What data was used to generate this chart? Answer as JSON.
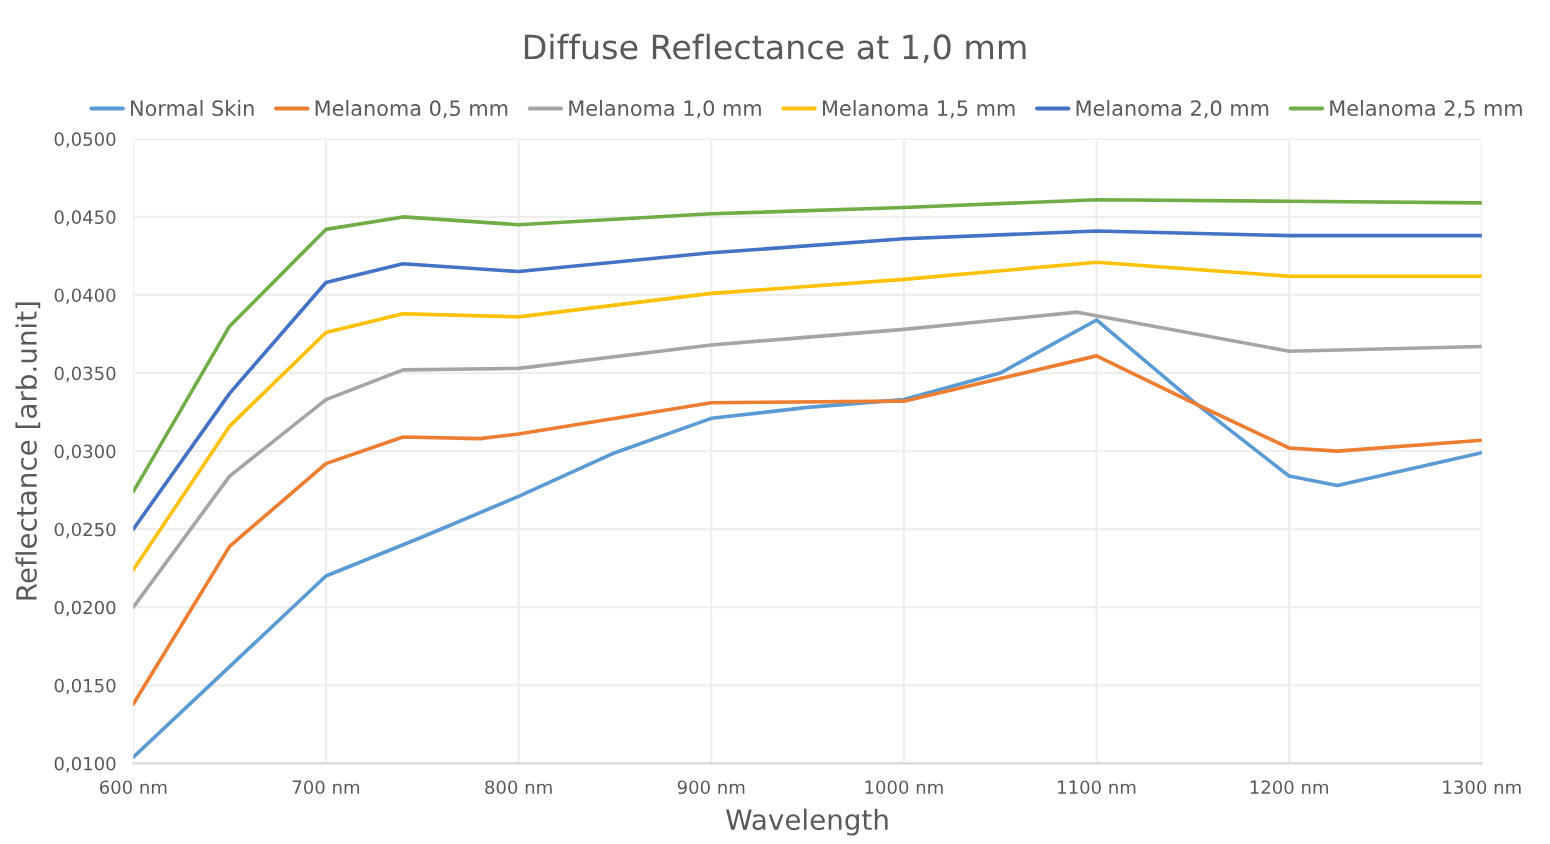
{
  "chart_data": {
    "type": "line",
    "title": "Diffuse Reflectance at 1,0 mm",
    "xlabel": "Wavelength",
    "ylabel": "Reflectance [arb.unit]",
    "series": [
      {
        "name": "Normal Skin",
        "color": "#5b9bd5",
        "x": [
          600,
          650,
          700,
          750,
          800,
          850,
          900,
          950,
          1000,
          1050,
          1100,
          1150,
          1200,
          1225,
          1300
        ],
        "values": [
          0.0104,
          0.0162,
          0.022,
          0.0245,
          0.0271,
          0.0299,
          0.0321,
          0.0328,
          0.0333,
          0.035,
          0.0384,
          0.0332,
          0.0284,
          0.0278,
          0.0299
        ]
      },
      {
        "name": "Melanoma 0,5 mm",
        "color": "#ed7d31",
        "x": [
          600,
          650,
          700,
          740,
          780,
          800,
          900,
          1000,
          1100,
          1150,
          1200,
          1225,
          1300
        ],
        "values": [
          0.0138,
          0.0239,
          0.0292,
          0.0309,
          0.0308,
          0.0311,
          0.0331,
          0.0332,
          0.0361,
          0.0331,
          0.0302,
          0.03,
          0.0307
        ]
      },
      {
        "name": "Melanoma 1,0 mm",
        "color": "#a5a5a5",
        "x": [
          600,
          650,
          700,
          740,
          800,
          900,
          1000,
          1090,
          1200,
          1300
        ],
        "values": [
          0.02,
          0.0284,
          0.0333,
          0.0352,
          0.0353,
          0.0368,
          0.0378,
          0.0389,
          0.0364,
          0.0367
        ]
      },
      {
        "name": "Melanoma 1,5 mm",
        "color": "#ffc000",
        "x": [
          600,
          650,
          700,
          740,
          800,
          900,
          1000,
          1100,
          1200,
          1300
        ],
        "values": [
          0.0224,
          0.0316,
          0.0376,
          0.0388,
          0.0386,
          0.0401,
          0.041,
          0.0421,
          0.0412,
          0.0412
        ]
      },
      {
        "name": "Melanoma 2,0 mm",
        "color": "#4472c4",
        "x": [
          600,
          650,
          700,
          740,
          800,
          900,
          1000,
          1100,
          1200,
          1300
        ],
        "values": [
          0.025,
          0.0337,
          0.0408,
          0.042,
          0.0415,
          0.0427,
          0.0436,
          0.0441,
          0.0438,
          0.0438
        ]
      },
      {
        "name": "Melanoma 2,5 mm",
        "color": "#70ad47",
        "x": [
          600,
          650,
          700,
          740,
          800,
          900,
          1000,
          1100,
          1200,
          1300
        ],
        "values": [
          0.0274,
          0.038,
          0.0442,
          0.045,
          0.0445,
          0.0452,
          0.0456,
          0.0461,
          0.046,
          0.0459
        ]
      }
    ],
    "xlim": [
      600,
      1300
    ],
    "xticks": [
      {
        "value": 600,
        "label": "600 nm"
      },
      {
        "value": 700,
        "label": "700 nm"
      },
      {
        "value": 800,
        "label": "800 nm"
      },
      {
        "value": 900,
        "label": "900 nm"
      },
      {
        "value": 1000,
        "label": "1000 nm"
      },
      {
        "value": 1100,
        "label": "1100 nm"
      },
      {
        "value": 1200,
        "label": "1200 nm"
      },
      {
        "value": 1300,
        "label": "1300 nm"
      }
    ],
    "ylim": [
      0.01,
      0.05
    ],
    "yticks": [
      {
        "value": 0.01,
        "label": "0,0100"
      },
      {
        "value": 0.015,
        "label": "0,0150"
      },
      {
        "value": 0.02,
        "label": "0,0200"
      },
      {
        "value": 0.025,
        "label": "0,0250"
      },
      {
        "value": 0.03,
        "label": "0,0300"
      },
      {
        "value": 0.035,
        "label": "0,0350"
      },
      {
        "value": 0.04,
        "label": "0,0400"
      },
      {
        "value": 0.045,
        "label": "0,0450"
      },
      {
        "value": 0.05,
        "label": "0,0500"
      }
    ],
    "grid": true,
    "legend": "top",
    "marker": "none",
    "line_style": "solid"
  }
}
